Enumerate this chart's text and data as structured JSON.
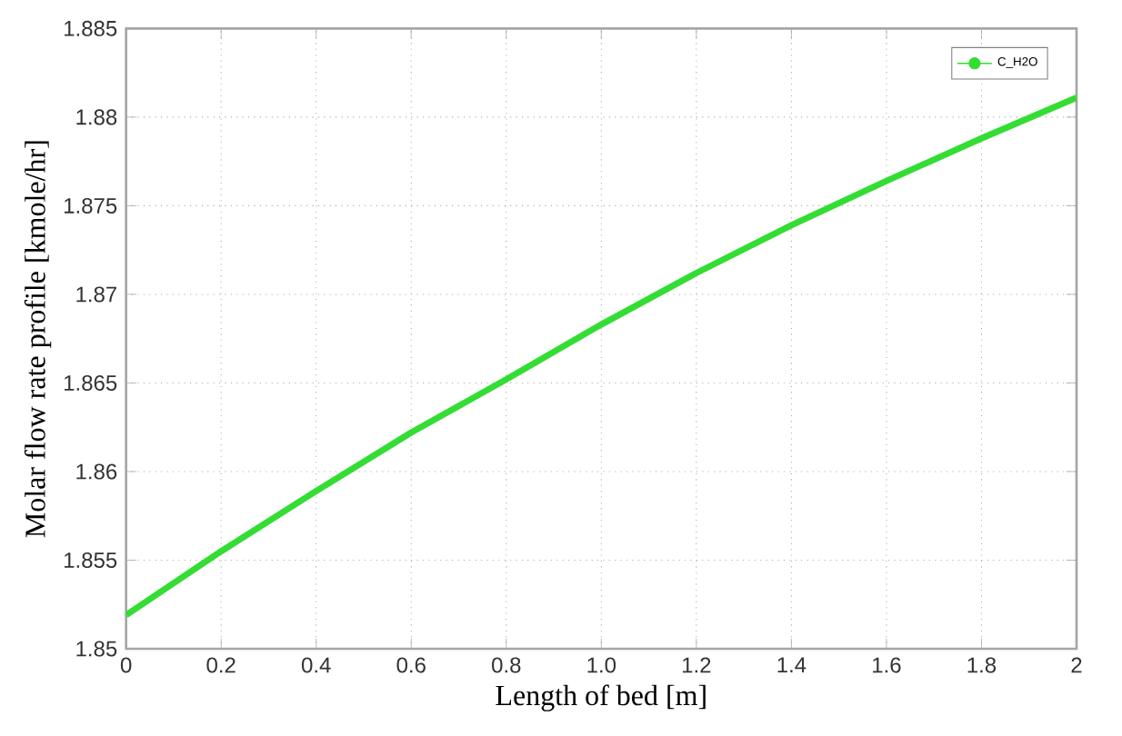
{
  "chart_data": {
    "type": "line",
    "xlabel": "Length of bed [m]",
    "ylabel": "Molar flow rate profile [kmole/hr]",
    "x": [
      0,
      0.2,
      0.4,
      0.6,
      0.8,
      1.0,
      1.2,
      1.4,
      1.6,
      1.8,
      2.0
    ],
    "series": [
      {
        "name": "C_H2O",
        "color": "#33dd33",
        "values": [
          1.8519,
          1.8555,
          1.8589,
          1.8622,
          1.8652,
          1.8683,
          1.8712,
          1.8739,
          1.8764,
          1.8788,
          1.8811
        ]
      }
    ],
    "xlim": [
      0,
      2
    ],
    "ylim": [
      1.85,
      1.885
    ],
    "xticks": [
      0,
      0.2,
      0.4,
      0.6,
      0.8,
      {
        "value": 1,
        "label": "1.0"
      },
      1.2,
      1.4,
      1.6,
      1.8,
      2
    ],
    "yticks": [
      1.85,
      1.855,
      1.86,
      1.865,
      1.87,
      1.875,
      1.88,
      1.885
    ],
    "grid": true,
    "legend": "top right",
    "line_style": "solid"
  }
}
